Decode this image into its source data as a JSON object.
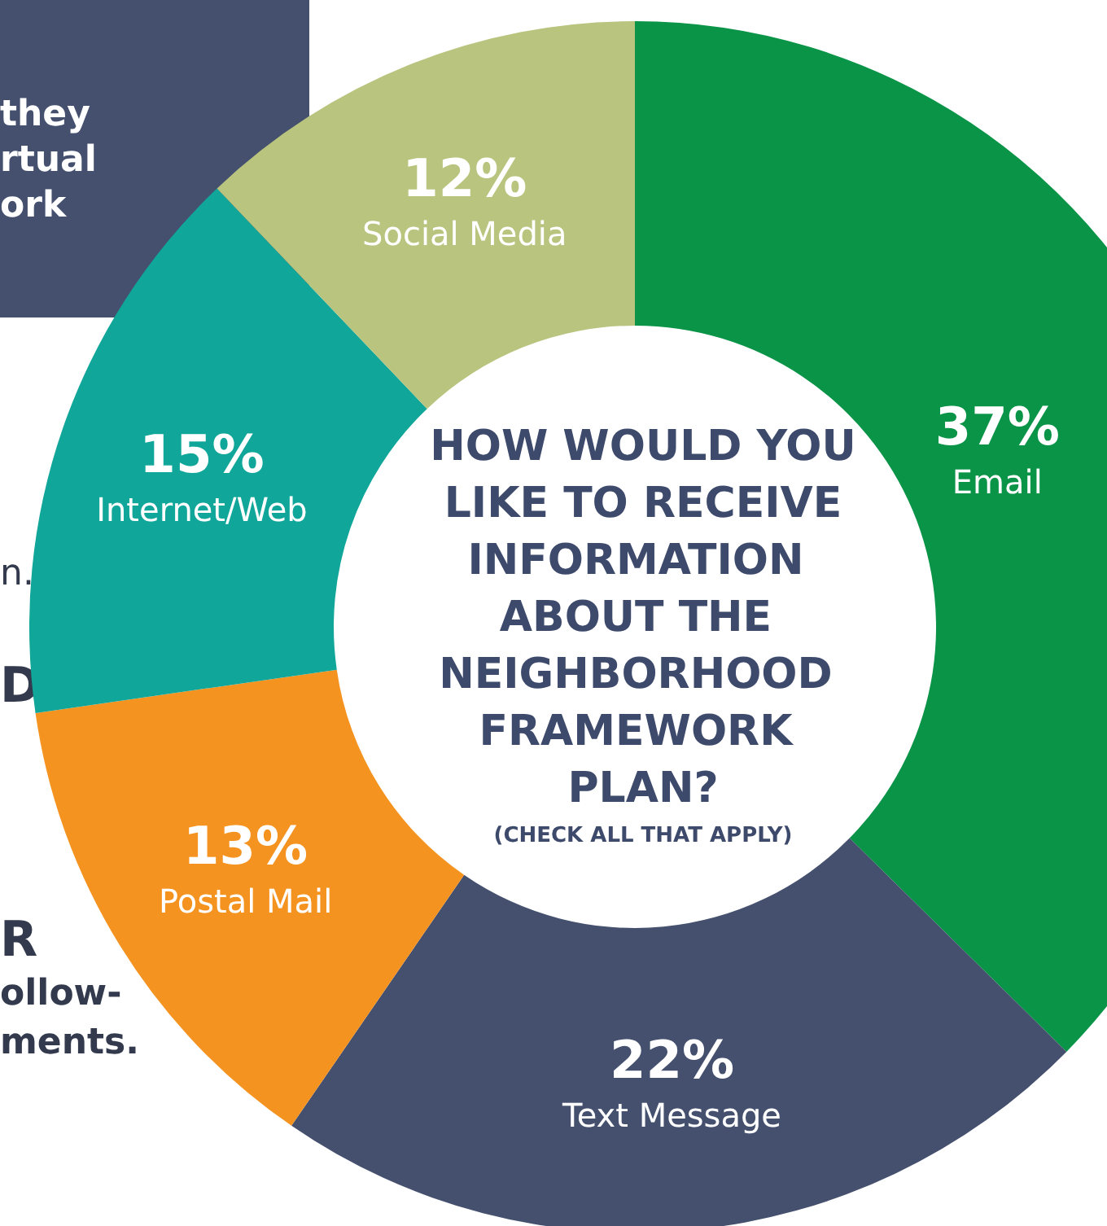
{
  "chart_data": {
    "type": "donut",
    "title": "HOW WOULD YOU LIKE TO RECEIVE INFORMATION ABOUT THE NEIGHBORHOOD FRAMEWORK PLAN?",
    "subtitle": "(CHECK ALL THAT APPLY)",
    "categories": [
      "Email",
      "Text Message",
      "Postal Mail",
      "Internet/Web",
      "Social Media"
    ],
    "values": [
      37,
      22,
      13,
      15,
      12
    ],
    "value_labels": [
      "37%",
      "22%",
      "13%",
      "15%",
      "12%"
    ],
    "colors": [
      "#0a9447",
      "#44506e",
      "#f59320",
      "#10a69a",
      "#b9c47e"
    ],
    "annotations": [
      "they",
      "rtual",
      "ork",
      "n.",
      "D",
      "R",
      "ollow-",
      "ments."
    ],
    "legend": false
  }
}
